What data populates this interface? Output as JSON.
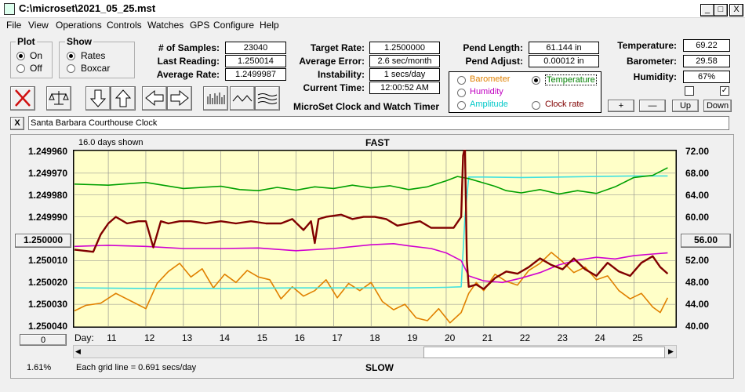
{
  "window": {
    "title": "C:\\microset\\2021_05_25.mst",
    "minimize": "_",
    "maximize": "□",
    "close": "X"
  },
  "menu": [
    "File",
    "View",
    "Operations",
    "Controls",
    "Watches",
    "GPS",
    "Configure",
    "Help"
  ],
  "plot_group": {
    "title": "Plot",
    "options": [
      "On",
      "Off"
    ],
    "selected": "On"
  },
  "show_group": {
    "title": "Show",
    "options": [
      "Rates",
      "Boxcar"
    ],
    "selected": "Rates"
  },
  "stats": [
    {
      "label": "# of Samples:",
      "value": "23040"
    },
    {
      "label": "Last Reading:",
      "value": "1.250014"
    },
    {
      "label": "Average Rate:",
      "value": "1.2499987"
    }
  ],
  "rates": [
    {
      "label": "Target Rate:",
      "value": "1.2500000"
    },
    {
      "label": "Average Error:",
      "value": "2.6 sec/month"
    },
    {
      "label": "Instability:",
      "value": "1 secs/day"
    },
    {
      "label": "Current Time:",
      "value": "12:00:52 AM"
    }
  ],
  "subtitle": "MicroSet Clock and Watch Timer",
  "pendulum": [
    {
      "label": "Pend Length:",
      "value": "61.144 in"
    },
    {
      "label": "Pend Adjust:",
      "value": "0.00012 in"
    }
  ],
  "env": [
    {
      "label": "Temperature:",
      "value": "69.22"
    },
    {
      "label": "Barometer:",
      "value": "29.58"
    },
    {
      "label": "Humidity:",
      "value": "67%"
    }
  ],
  "env_checks": [
    {
      "checked": ""
    },
    {
      "checked": "✓"
    }
  ],
  "overlay_options": [
    {
      "label": "Barometer",
      "color": "#e08000",
      "selected": false
    },
    {
      "label": "Temperature",
      "color": "#008000",
      "selected": true
    },
    {
      "label": "Humidity",
      "color": "#c000c0",
      "selected": false
    },
    {
      "label": "Amplitude",
      "color": "#00c8c8",
      "selected": false
    },
    {
      "label": "Clock rate",
      "color": "#800000",
      "selected": false
    }
  ],
  "adjust_buttons": [
    "+",
    "—",
    "Up",
    "Down"
  ],
  "description": {
    "close": "X",
    "value": "Santa Barbara Courthouse Clock"
  },
  "chart_header": {
    "days_shown": "16.0 days shown",
    "fast": "FAST",
    "slow": "SLOW",
    "grid_note": "Each grid line = 0.691 secs/day",
    "percent": "1.61%",
    "day_label": "Day:"
  },
  "left_button": "1.250000",
  "right_button": "56.00",
  "bottom_button": "0",
  "chart_data": {
    "type": "line",
    "ylabel_left_ticks": [
      "1.249960",
      "1.249970",
      "1.249980",
      "1.249990",
      "1.250000",
      "1.250010",
      "1.250020",
      "1.250030",
      "1.250040"
    ],
    "ylim_left": [
      1.25004,
      1.24996
    ],
    "ylabel_right_ticks": [
      "72.00",
      "68.00",
      "64.00",
      "60.00",
      "56.00",
      "52.00",
      "48.00",
      "44.00",
      "40.00"
    ],
    "ylim_right": [
      40,
      72
    ],
    "x_ticks": [
      "11",
      "12",
      "13",
      "14",
      "15",
      "16",
      "17",
      "18",
      "19",
      "20",
      "21",
      "22",
      "23",
      "24",
      "25"
    ],
    "xlim": [
      10.1,
      26.1
    ],
    "series": [
      {
        "name": "Clock rate",
        "color": "#800000",
        "axis": "left",
        "x": [
          10.1,
          10.6,
          10.8,
          11.0,
          11.2,
          11.5,
          11.8,
          12.0,
          12.2,
          12.4,
          12.6,
          12.9,
          13.2,
          13.6,
          14.0,
          14.4,
          14.8,
          15.2,
          15.6,
          15.9,
          16.2,
          16.4,
          16.5,
          16.6,
          16.8,
          17.2,
          17.5,
          17.8,
          18.1,
          18.4,
          18.7,
          19.0,
          19.3,
          19.6,
          19.9,
          20.2,
          20.4,
          20.45,
          20.5,
          20.55,
          20.6,
          20.8,
          21.0,
          21.3,
          21.6,
          21.9,
          22.2,
          22.5,
          22.8,
          23.1,
          23.4,
          23.7,
          24.0,
          24.3,
          24.6,
          24.9,
          25.2,
          25.5,
          25.7,
          25.9
        ],
        "y": [
          1.250005,
          1.250006,
          1.249998,
          1.249993,
          1.24999,
          1.249993,
          1.249992,
          1.249992,
          1.250004,
          1.249992,
          1.249993,
          1.249992,
          1.249992,
          1.249993,
          1.249992,
          1.249993,
          1.249992,
          1.249993,
          1.249993,
          1.249991,
          1.249996,
          1.249992,
          1.250002,
          1.249991,
          1.24999,
          1.249989,
          1.249991,
          1.24999,
          1.24999,
          1.249991,
          1.249994,
          1.249993,
          1.249992,
          1.249995,
          1.249995,
          1.249995,
          1.24999,
          1.249962,
          1.249958,
          1.25001,
          1.250022,
          1.250021,
          1.250023,
          1.250018,
          1.250015,
          1.250016,
          1.250013,
          1.250009,
          1.250012,
          1.250014,
          1.250009,
          1.250014,
          1.250017,
          1.250011,
          1.250015,
          1.250017,
          1.250011,
          1.250008,
          1.250013,
          1.250016
        ]
      },
      {
        "name": "Temperature",
        "color": "#00a000",
        "axis": "right",
        "x": [
          10.1,
          11.0,
          12.0,
          13.0,
          14.0,
          14.5,
          15.0,
          15.5,
          16.0,
          16.5,
          17.0,
          17.5,
          18.0,
          18.5,
          19.0,
          19.5,
          20.0,
          20.3,
          20.6,
          21.0,
          21.3,
          21.6,
          22.0,
          22.5,
          23.0,
          23.5,
          24.0,
          24.5,
          25.0,
          25.5,
          25.9
        ],
        "y": [
          66.0,
          65.8,
          66.3,
          65.2,
          65.6,
          65.0,
          64.8,
          65.4,
          64.9,
          65.5,
          65.2,
          65.8,
          65.3,
          65.7,
          65.0,
          65.5,
          66.6,
          67.4,
          67.0,
          66.2,
          65.6,
          64.8,
          64.4,
          65.0,
          64.2,
          64.8,
          64.3,
          65.5,
          67.2,
          67.6,
          69.0
        ]
      },
      {
        "name": "Humidity",
        "color": "#d000d0",
        "axis": "right",
        "x": [
          10.1,
          11.0,
          12.0,
          13.0,
          14.0,
          15.0,
          16.0,
          17.0,
          18.0,
          18.6,
          19.0,
          19.6,
          20.0,
          20.4,
          20.6,
          21.0,
          21.5,
          22.0,
          22.5,
          23.0,
          23.5,
          24.0,
          24.5,
          25.0,
          25.5,
          25.9
        ],
        "y": [
          54.6,
          54.8,
          54.6,
          54.2,
          54.2,
          54.3,
          53.8,
          54.2,
          54.9,
          55.1,
          54.7,
          54.2,
          53.4,
          52.0,
          49.2,
          48.3,
          48.0,
          48.8,
          49.8,
          51.2,
          52.1,
          52.6,
          52.3,
          52.9,
          53.2,
          53.4
        ]
      },
      {
        "name": "Amplitude",
        "color": "#40e0e0",
        "axis": "right",
        "x": [
          10.1,
          12.0,
          14.0,
          16.0,
          18.0,
          19.0,
          20.0,
          20.4,
          20.5,
          20.6,
          21.0,
          22.0,
          23.0,
          24.0,
          25.0,
          25.9
        ],
        "y": [
          47.0,
          46.9,
          46.9,
          47.0,
          47.0,
          47.0,
          47.1,
          47.2,
          60.0,
          67.3,
          67.3,
          67.2,
          67.3,
          67.4,
          67.5,
          67.5
        ]
      },
      {
        "name": "Barometer",
        "color": "#e08000",
        "axis": "right",
        "x": [
          10.1,
          10.4,
          10.8,
          11.2,
          11.6,
          12.0,
          12.3,
          12.6,
          12.9,
          13.2,
          13.5,
          13.8,
          14.1,
          14.4,
          14.7,
          15.0,
          15.3,
          15.6,
          15.9,
          16.2,
          16.5,
          16.8,
          17.1,
          17.4,
          17.7,
          18.0,
          18.3,
          18.6,
          18.9,
          19.2,
          19.5,
          19.8,
          20.1,
          20.4,
          20.6,
          20.8,
          21.0,
          21.3,
          21.6,
          21.9,
          22.2,
          22.5,
          22.8,
          23.1,
          23.4,
          23.7,
          24.0,
          24.3,
          24.6,
          24.9,
          25.2,
          25.5,
          25.7,
          25.9
        ],
        "y": [
          42.8,
          43.8,
          44.2,
          46.0,
          44.6,
          43.2,
          47.8,
          50.0,
          51.5,
          49.0,
          50.5,
          47.0,
          49.5,
          48.0,
          50.2,
          49.0,
          48.5,
          45.0,
          47.2,
          45.5,
          46.5,
          48.5,
          45.2,
          47.8,
          46.5,
          48.0,
          44.5,
          43.0,
          44.0,
          41.5,
          41.0,
          43.2,
          40.6,
          42.5,
          46.0,
          48.0,
          46.5,
          49.5,
          48.2,
          47.5,
          50.2,
          51.5,
          53.5,
          51.8,
          49.8,
          50.8,
          48.5,
          49.2,
          46.5,
          45.0,
          46.0,
          43.5,
          42.5,
          45.2
        ]
      }
    ]
  }
}
